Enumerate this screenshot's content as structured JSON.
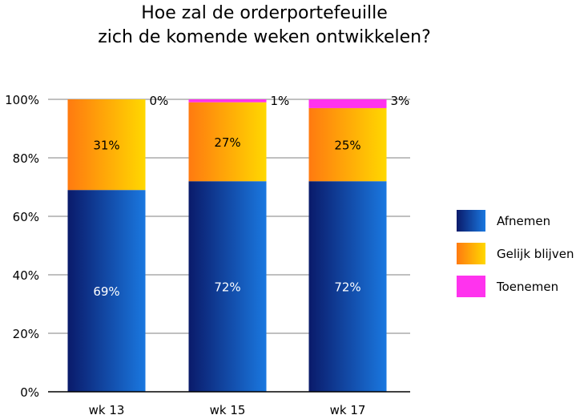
{
  "chart_data": {
    "type": "bar",
    "stacked": true,
    "title_line1": "Hoe zal de orderportefeuille",
    "title_line2": "zich de komende weken ontwikkelen?",
    "categories": [
      "wk 13",
      "wk 15",
      "wk 17"
    ],
    "series": [
      {
        "name": "Afnemen",
        "values": [
          69,
          72,
          72
        ],
        "labels": [
          "69%",
          "72%",
          "72%"
        ],
        "gradient": [
          "#0a1a6a",
          "#1a78e0"
        ],
        "label_color": "#ffffff"
      },
      {
        "name": "Gelijk blijven",
        "values": [
          31,
          27,
          25
        ],
        "labels": [
          "31%",
          "27%",
          "25%"
        ],
        "gradient": [
          "#ff7a10",
          "#ffd800"
        ],
        "label_color": "#000000"
      },
      {
        "name": "Toenemen",
        "values": [
          0,
          1,
          3
        ],
        "labels": [
          "0%",
          "1%",
          "3%"
        ],
        "gradient": [
          "#ff33ee",
          "#ff33ee"
        ],
        "label_color": "#000000"
      }
    ],
    "y_ticks": [
      "0%",
      "20%",
      "40%",
      "60%",
      "80%",
      "100%"
    ],
    "ylim": [
      0,
      100
    ],
    "grid": true,
    "legend_position": "right"
  }
}
